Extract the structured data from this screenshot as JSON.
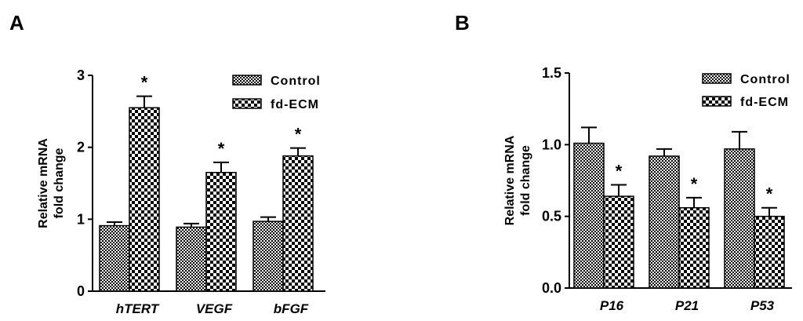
{
  "chart_data": [
    {
      "panel": "A",
      "type": "bar",
      "categories": [
        "hTERT",
        "VEGF",
        "bFGF"
      ],
      "series": [
        {
          "name": "Control",
          "values": [
            0.91,
            0.89,
            0.97
          ],
          "errors": [
            0.05,
            0.05,
            0.06
          ],
          "pattern": "fine-check"
        },
        {
          "name": "fd-ECM",
          "values": [
            2.55,
            1.65,
            1.88
          ],
          "errors": [
            0.16,
            0.14,
            0.11
          ],
          "pattern": "coarse-check"
        }
      ],
      "significance": [
        "*",
        "*",
        "*"
      ],
      "ylabel": [
        "Relative mRNA",
        "fold change"
      ],
      "ylim": [
        0,
        3
      ],
      "yticks": [
        "0",
        "1",
        "2",
        "3"
      ],
      "legend_position": "top-right",
      "grid": false
    },
    {
      "panel": "B",
      "type": "bar",
      "categories": [
        "P16",
        "P21",
        "P53"
      ],
      "series": [
        {
          "name": "Control",
          "values": [
            1.01,
            0.92,
            0.97
          ],
          "errors": [
            0.11,
            0.05,
            0.12
          ],
          "pattern": "fine-check"
        },
        {
          "name": "fd-ECM",
          "values": [
            0.64,
            0.56,
            0.5
          ],
          "errors": [
            0.08,
            0.07,
            0.06
          ],
          "pattern": "coarse-check"
        }
      ],
      "significance": [
        "*",
        "*",
        "*"
      ],
      "ylabel": [
        "Relative mRNA",
        "fold change"
      ],
      "ylim": [
        0,
        1.5
      ],
      "yticks": [
        "0.0",
        "0.5",
        "1.0",
        "1.5"
      ],
      "legend_position": "top-right",
      "grid": false
    }
  ]
}
